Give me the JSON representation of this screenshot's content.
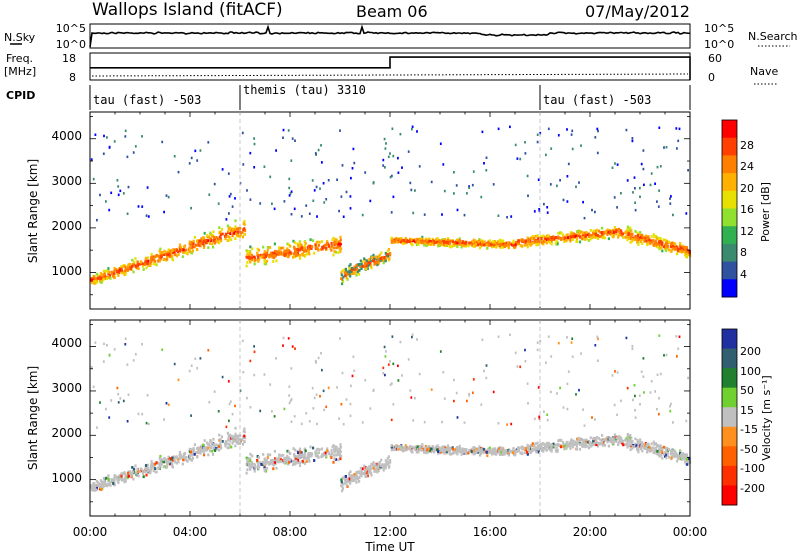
{
  "header": {
    "site": "Wallops Island (fitACF)",
    "beam": "Beam 06",
    "date": "07/May/2012"
  },
  "sky_panel": {
    "left_label": "N.Sky",
    "right_label": "N.Search",
    "y_top_left": "10^5",
    "y_bottom_left": "10^0",
    "y_top_right": "10^5",
    "y_bottom_right": "10^0"
  },
  "freq_panel": {
    "left_label_1": "Freq.",
    "left_label_2": "[MHz]",
    "right_label": "Nave",
    "y_top_left": "18",
    "y_bottom_left": "8",
    "y_top_right": "60",
    "y_bottom_right": "0",
    "freq_steps": [
      {
        "t": 0,
        "v": 12.5
      },
      {
        "t": 12,
        "v": 16.5
      }
    ]
  },
  "cpid": {
    "label": "CPID",
    "segments": [
      {
        "label": "tau (fast) -503",
        "start": 0
      },
      {
        "label": "themis (tau) 3310",
        "start": 6
      },
      {
        "label": "tau (fast) -503",
        "start": 18
      }
    ]
  },
  "x_axis": {
    "title": "Time UT",
    "ticks": [
      "00:00",
      "04:00",
      "08:00",
      "12:00",
      "16:00",
      "20:00",
      "00:00"
    ]
  },
  "power_panel": {
    "ylabel": "Slant Range [km]",
    "yticks": [
      "1000",
      "2000",
      "3000",
      "4000"
    ],
    "colorbar_label": "Power [dB]",
    "colorbar_ticks": [
      "28",
      "24",
      "20",
      "16",
      "12",
      "8",
      "4"
    ],
    "colors": [
      "#ff0000",
      "#ff4000",
      "#ff8000",
      "#ffb000",
      "#e8e000",
      "#90e030",
      "#30b050",
      "#3a8a70",
      "#3050a0",
      "#0000ff"
    ]
  },
  "velocity_panel": {
    "ylabel": "Slant Range [km]",
    "yticks": [
      "1000",
      "2000",
      "3000",
      "4000"
    ],
    "colorbar_label": "Velocity [m s⁻¹]",
    "colorbar_ticks": [
      "200",
      "100",
      "50",
      "15",
      "-15",
      "-50",
      "-100",
      "-200"
    ],
    "colors": [
      "#2030a0",
      "#306070",
      "#208030",
      "#70d030",
      "#c0c0c0",
      "#ff9020",
      "#ff6000",
      "#ff3000",
      "#ff0000"
    ]
  },
  "chart_data": {
    "type": "heatmap",
    "x_range_hours": [
      0,
      24
    ],
    "y_range_km": [
      180,
      4600
    ],
    "power_bands": [
      {
        "t": [
          0,
          6
        ],
        "r": [
          800,
          2200
        ],
        "dominant_db": 24
      },
      {
        "t": [
          10,
          12
        ],
        "r": [
          900,
          1500
        ],
        "dominant_db": 20
      },
      {
        "t": [
          12,
          24
        ],
        "r": [
          1500,
          2000
        ],
        "dominant_db": 20
      }
    ]
  }
}
